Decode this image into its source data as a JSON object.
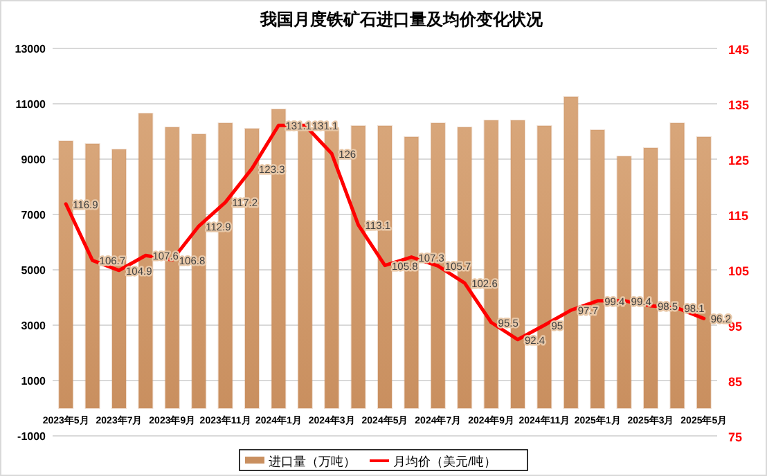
{
  "chart_data": {
    "type": "bar",
    "title": "我国月度铁矿石进口量及均价变化状况",
    "categories": [
      "2023年5月",
      null,
      "2023年7月",
      null,
      "2023年9月",
      null,
      "2023年11月",
      null,
      "2024年1月",
      null,
      "2024年3月",
      null,
      "2024年5月",
      null,
      "2024年7月",
      null,
      "2024年9月",
      null,
      "2024年11月",
      null,
      "2025年1月",
      null,
      "2025年3月",
      null,
      "2025年5月"
    ],
    "series": [
      {
        "name": "进口量（万吨）",
        "color": "#c98f5f",
        "values": [
          9650,
          9550,
          9350,
          10650,
          10150,
          9900,
          10300,
          10100,
          10800,
          10100,
          10050,
          10200,
          10200,
          9800,
          10300,
          10150,
          10400,
          10400,
          10200,
          11250,
          10050,
          9100,
          9400,
          10300,
          9800
        ]
      },
      {
        "name": "月均价（美元/吨）",
        "type": "line",
        "axis": "y2",
        "color": "#ff0000",
        "values": [
          116.9,
          106.7,
          104.9,
          107.6,
          106.8,
          112.9,
          117.2,
          123.3,
          131.1,
          131.1,
          126,
          113.1,
          105.8,
          107.3,
          105.7,
          102.6,
          95.5,
          92.4,
          95,
          97.7,
          99.4,
          99.4,
          98.5,
          98.1,
          96.2
        ],
        "value_labels": [
          "116.9",
          "106.7",
          "104.9",
          "107.6",
          "106.8",
          "112.9",
          "117.2",
          "123.3",
          "131.1",
          "131.1",
          "126",
          "113.1",
          "105.8",
          "107.3",
          "105.7",
          "102.6",
          "95.5",
          "92.4",
          "95",
          "97.7",
          "99.4",
          "99.4",
          "98.5",
          "98.1",
          "96.2"
        ]
      }
    ],
    "ylim": [
      -1000,
      13000
    ],
    "yticks": [
      -1000,
      1000,
      3000,
      5000,
      7000,
      9000,
      11000,
      13000
    ],
    "y2lim": [
      75,
      145
    ],
    "y2ticks": [
      75,
      85,
      95,
      105,
      115,
      125,
      135,
      145
    ],
    "grid": "y",
    "legend": "bottom"
  }
}
